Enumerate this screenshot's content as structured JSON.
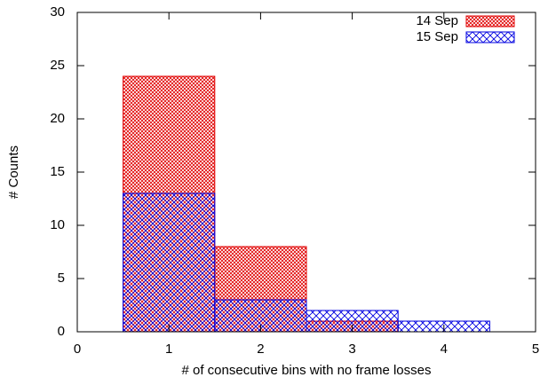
{
  "chart_data": {
    "type": "bar",
    "x": [
      1,
      2,
      3,
      4
    ],
    "series": [
      {
        "name": "14 Sep",
        "color": "#e00000",
        "values": [
          24,
          8,
          1,
          0
        ]
      },
      {
        "name": "15 Sep",
        "color": "#0000e0",
        "values": [
          13,
          3,
          2,
          1
        ]
      }
    ],
    "xlabel": "# of consecutive bins with no frame losses",
    "ylabel": "# Counts",
    "xlim": [
      0,
      5
    ],
    "xticks": [
      0,
      1,
      2,
      3,
      4,
      5
    ],
    "ylim": [
      0,
      30
    ],
    "yticks": [
      0,
      5,
      10,
      15,
      20,
      25,
      30
    ],
    "legend": "top-right"
  }
}
